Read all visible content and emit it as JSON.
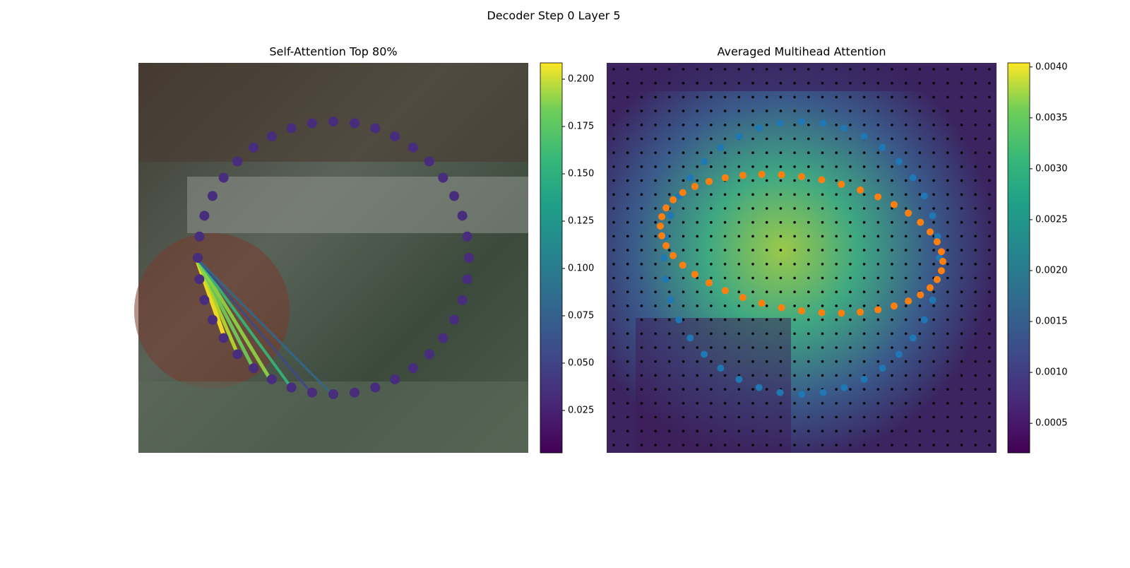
{
  "title": "Decoder Step 0 Layer 5",
  "chart_data": [
    {
      "type": "image",
      "title": "Self-Attention Top 80%",
      "colorbar": {
        "lim": [
          0.0026,
          0.2086
        ],
        "ticks": [
          0.025,
          0.05,
          0.075,
          0.1,
          0.125,
          0.15,
          0.175,
          0.2
        ],
        "tick_labels": [
          "0.025",
          "0.050",
          "0.075",
          "0.100",
          "0.125",
          "0.150",
          "0.175",
          "0.200"
        ]
      }
    },
    {
      "type": "image",
      "title": "Averaged Multihead Attention",
      "colorbar": {
        "lim": [
          0.00021,
          0.00404
        ],
        "ticks": [
          0.0005,
          0.001,
          0.0015,
          0.002,
          0.0025,
          0.003,
          0.0035,
          0.004
        ],
        "tick_labels": [
          "0.0005",
          "0.0010",
          "0.0015",
          "0.0020",
          "0.0025",
          "0.0030",
          "0.0035",
          "0.0040"
        ]
      }
    }
  ]
}
